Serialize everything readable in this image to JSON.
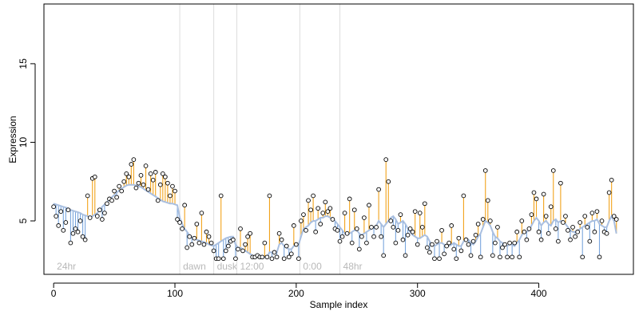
{
  "chart_data": {
    "type": "line",
    "title": "",
    "xlabel": "Sample index",
    "ylabel": "Expression",
    "xlim": [
      -8,
      478
    ],
    "ylim": [
      1.6,
      18.8
    ],
    "x_ticks": [
      0,
      100,
      200,
      300,
      400
    ],
    "y_ticks": [
      5,
      10,
      15
    ],
    "grid": false,
    "legend": "none",
    "colors": {
      "fitted_line": "#a9bfe0",
      "residual_above": "#f2a31b",
      "residual_below": "#7aa6dd",
      "points_fill": "#ffffff",
      "points_stroke": "#000000",
      "phase_lines": "#dddddd",
      "phase_text": "#b8b8b8"
    },
    "phases": [
      {
        "label": "24hr",
        "x": 0
      },
      {
        "label": "dawn",
        "x": 104
      },
      {
        "label": "dusk",
        "x": 132
      },
      {
        "label": "12:00",
        "x": 151
      },
      {
        "label": "0:00",
        "x": 203
      },
      {
        "label": "48hr",
        "x": 236
      }
    ],
    "series": [
      {
        "values": [
          [
            0,
            5.9,
            6.1
          ],
          [
            2,
            5.3,
            6.05
          ],
          [
            4,
            4.7,
            6.0
          ],
          [
            6,
            5.6,
            5.95
          ],
          [
            8,
            4.4,
            5.9
          ],
          [
            10,
            4.9,
            5.85
          ],
          [
            12,
            5.7,
            5.8
          ],
          [
            14,
            3.6,
            5.7
          ],
          [
            16,
            4.2,
            5.65
          ],
          [
            18,
            4.5,
            5.6
          ],
          [
            20,
            4.3,
            5.55
          ],
          [
            22,
            5.0,
            5.5
          ],
          [
            24,
            4.0,
            5.4
          ],
          [
            26,
            3.8,
            5.35
          ],
          [
            28,
            6.6,
            5.3
          ],
          [
            30,
            5.2,
            5.25
          ],
          [
            32,
            7.7,
            5.3
          ],
          [
            34,
            7.8,
            5.4
          ],
          [
            36,
            5.3,
            5.5
          ],
          [
            38,
            5.7,
            5.7
          ],
          [
            40,
            5.1,
            5.9
          ],
          [
            42,
            5.5,
            6.05
          ],
          [
            44,
            6.1,
            6.2
          ],
          [
            46,
            6.4,
            6.35
          ],
          [
            48,
            6.3,
            6.5
          ],
          [
            50,
            6.9,
            6.65
          ],
          [
            52,
            6.5,
            6.8
          ],
          [
            54,
            7.2,
            6.95
          ],
          [
            56,
            6.9,
            7.05
          ],
          [
            58,
            7.5,
            7.15
          ],
          [
            60,
            8.0,
            7.25
          ],
          [
            62,
            7.8,
            7.3
          ],
          [
            64,
            8.6,
            7.3
          ],
          [
            66,
            8.9,
            7.3
          ],
          [
            68,
            7.1,
            7.25
          ],
          [
            70,
            7.4,
            7.2
          ],
          [
            72,
            7.9,
            7.15
          ],
          [
            74,
            7.3,
            7.05
          ],
          [
            76,
            8.5,
            6.95
          ],
          [
            78,
            7.0,
            6.85
          ],
          [
            80,
            8.0,
            6.75
          ],
          [
            82,
            7.6,
            6.65
          ],
          [
            84,
            8.1,
            6.55
          ],
          [
            86,
            6.3,
            6.45
          ],
          [
            88,
            7.3,
            6.35
          ],
          [
            90,
            8.0,
            6.25
          ],
          [
            92,
            7.8,
            6.2
          ],
          [
            94,
            7.4,
            6.15
          ],
          [
            96,
            6.6,
            6.1
          ],
          [
            98,
            7.2,
            6.1
          ],
          [
            100,
            6.9,
            6.05
          ],
          [
            102,
            5.1,
            6.0
          ],
          [
            104,
            4.9,
            5.2
          ],
          [
            106,
            4.5,
            4.8
          ],
          [
            108,
            6.0,
            4.5
          ],
          [
            110,
            3.3,
            4.3
          ],
          [
            112,
            4.0,
            4.1
          ],
          [
            114,
            3.5,
            3.95
          ],
          [
            116,
            3.9,
            3.85
          ],
          [
            118,
            4.8,
            3.8
          ],
          [
            120,
            3.6,
            3.75
          ],
          [
            122,
            5.5,
            3.7
          ],
          [
            124,
            3.5,
            3.65
          ],
          [
            126,
            4.3,
            3.6
          ],
          [
            128,
            4.0,
            3.5
          ],
          [
            130,
            3.6,
            3.45
          ],
          [
            132,
            3.1,
            3.4
          ],
          [
            134,
            2.6,
            3.5
          ],
          [
            136,
            2.6,
            3.6
          ],
          [
            138,
            6.6,
            3.7
          ],
          [
            140,
            2.6,
            3.8
          ],
          [
            142,
            3.1,
            3.9
          ],
          [
            144,
            3.4,
            3.95
          ],
          [
            146,
            3.7,
            4.0
          ],
          [
            148,
            3.8,
            4.0
          ],
          [
            150,
            2.6,
            3.5
          ],
          [
            152,
            3.2,
            3.3
          ],
          [
            154,
            4.5,
            3.3
          ],
          [
            156,
            3.1,
            3.2
          ],
          [
            158,
            3.5,
            3.1
          ],
          [
            160,
            4.0,
            3.0
          ],
          [
            162,
            4.2,
            2.9
          ],
          [
            164,
            2.7,
            2.8
          ],
          [
            166,
            2.7,
            2.75
          ],
          [
            168,
            2.8,
            2.7
          ],
          [
            170,
            2.7,
            2.7
          ],
          [
            172,
            2.7,
            2.7
          ],
          [
            174,
            3.6,
            2.7
          ],
          [
            176,
            2.7,
            2.7
          ],
          [
            178,
            6.6,
            3.0
          ],
          [
            180,
            2.6,
            3.0
          ],
          [
            182,
            3.0,
            3.0
          ],
          [
            184,
            2.7,
            3.0
          ],
          [
            186,
            4.2,
            3.5
          ],
          [
            188,
            3.8,
            3.6
          ],
          [
            190,
            2.6,
            3.4
          ],
          [
            192,
            3.4,
            3.3
          ],
          [
            194,
            2.7,
            3.2
          ],
          [
            196,
            2.9,
            3.2
          ],
          [
            198,
            4.7,
            3.4
          ],
          [
            200,
            3.5,
            3.6
          ],
          [
            202,
            2.6,
            3.5
          ],
          [
            204,
            5.0,
            4.0
          ],
          [
            206,
            5.4,
            4.5
          ],
          [
            208,
            4.4,
            4.6
          ],
          [
            210,
            6.3,
            4.7
          ],
          [
            212,
            5.7,
            4.9
          ],
          [
            214,
            6.6,
            5.0
          ],
          [
            216,
            4.3,
            5.0
          ],
          [
            218,
            5.8,
            5.1
          ],
          [
            220,
            4.8,
            5.2
          ],
          [
            222,
            5.5,
            5.2
          ],
          [
            224,
            6.2,
            5.3
          ],
          [
            226,
            5.6,
            5.3
          ],
          [
            228,
            5.8,
            5.2
          ],
          [
            230,
            5.1,
            5.1
          ],
          [
            232,
            4.5,
            5.0
          ],
          [
            234,
            4.4,
            4.8
          ],
          [
            236,
            3.7,
            4.6
          ],
          [
            238,
            4.0,
            4.4
          ],
          [
            240,
            5.5,
            4.2
          ],
          [
            242,
            4.2,
            4.1
          ],
          [
            244,
            6.4,
            4.2
          ],
          [
            246,
            3.6,
            4.3
          ],
          [
            248,
            5.7,
            4.4
          ],
          [
            250,
            4.5,
            4.4
          ],
          [
            252,
            3.2,
            4.2
          ],
          [
            254,
            4.0,
            4.1
          ],
          [
            256,
            5.2,
            4.2
          ],
          [
            258,
            3.6,
            4.3
          ],
          [
            260,
            6.0,
            4.4
          ],
          [
            262,
            4.6,
            4.5
          ],
          [
            264,
            4.0,
            4.6
          ],
          [
            266,
            4.6,
            4.7
          ],
          [
            268,
            7.0,
            5.0
          ],
          [
            270,
            4.0,
            4.8
          ],
          [
            272,
            2.8,
            4.6
          ],
          [
            274,
            8.9,
            4.8
          ],
          [
            276,
            7.5,
            5.0
          ],
          [
            278,
            5.0,
            5.2
          ],
          [
            280,
            4.6,
            5.3
          ],
          [
            282,
            3.6,
            5.1
          ],
          [
            284,
            4.4,
            4.8
          ],
          [
            286,
            5.4,
            4.9
          ],
          [
            288,
            3.8,
            5.0
          ],
          [
            290,
            2.8,
            4.8
          ],
          [
            292,
            4.1,
            4.5
          ],
          [
            294,
            4.5,
            4.3
          ],
          [
            296,
            4.3,
            4.1
          ],
          [
            298,
            5.6,
            4.0
          ],
          [
            300,
            3.5,
            3.9
          ],
          [
            302,
            5.5,
            3.9
          ],
          [
            304,
            4.6,
            4.0
          ],
          [
            306,
            6.1,
            4.1
          ],
          [
            308,
            3.3,
            4.0
          ],
          [
            310,
            3.0,
            3.7
          ],
          [
            312,
            3.5,
            3.5
          ],
          [
            314,
            2.6,
            3.4
          ],
          [
            316,
            3.7,
            3.5
          ],
          [
            318,
            2.6,
            3.6
          ],
          [
            320,
            4.4,
            3.6
          ],
          [
            322,
            2.9,
            3.5
          ],
          [
            324,
            3.4,
            3.4
          ],
          [
            326,
            3.6,
            3.4
          ],
          [
            328,
            4.7,
            3.5
          ],
          [
            330,
            3.2,
            3.6
          ],
          [
            332,
            2.6,
            3.5
          ],
          [
            334,
            3.9,
            3.4
          ],
          [
            336,
            3.1,
            3.4
          ],
          [
            338,
            6.6,
            3.7
          ],
          [
            340,
            3.8,
            3.9
          ],
          [
            342,
            3.5,
            3.8
          ],
          [
            344,
            2.8,
            3.6
          ],
          [
            346,
            3.7,
            3.5
          ],
          [
            348,
            4.1,
            3.7
          ],
          [
            350,
            4.8,
            4.0
          ],
          [
            352,
            2.7,
            4.2
          ],
          [
            354,
            5.1,
            4.6
          ],
          [
            356,
            8.2,
            5.0
          ],
          [
            358,
            6.3,
            4.9
          ],
          [
            360,
            5.0,
            4.7
          ],
          [
            362,
            2.8,
            4.3
          ],
          [
            364,
            3.6,
            4.0
          ],
          [
            366,
            4.6,
            3.9
          ],
          [
            368,
            2.7,
            3.7
          ],
          [
            370,
            3.3,
            3.6
          ],
          [
            372,
            3.5,
            3.5
          ],
          [
            374,
            2.7,
            3.4
          ],
          [
            376,
            3.6,
            3.5
          ],
          [
            378,
            2.7,
            3.5
          ],
          [
            380,
            3.6,
            3.4
          ],
          [
            382,
            4.3,
            3.6
          ],
          [
            384,
            2.7,
            3.8
          ],
          [
            386,
            5.0,
            4.1
          ],
          [
            388,
            4.3,
            4.3
          ],
          [
            390,
            3.8,
            4.3
          ],
          [
            392,
            4.5,
            4.4
          ],
          [
            394,
            5.4,
            4.7
          ],
          [
            396,
            6.8,
            5.0
          ],
          [
            398,
            6.4,
            5.2
          ],
          [
            400,
            4.3,
            5.0
          ],
          [
            402,
            3.8,
            4.7
          ],
          [
            404,
            6.7,
            4.9
          ],
          [
            406,
            5.3,
            5.0
          ],
          [
            408,
            4.2,
            4.8
          ],
          [
            410,
            5.9,
            4.7
          ],
          [
            412,
            8.2,
            5.0
          ],
          [
            414,
            4.5,
            5.1
          ],
          [
            416,
            3.7,
            4.9
          ],
          [
            418,
            7.4,
            5.0
          ],
          [
            420,
            4.9,
            5.0
          ],
          [
            422,
            5.3,
            4.8
          ],
          [
            424,
            4.4,
            4.6
          ],
          [
            426,
            3.8,
            4.4
          ],
          [
            428,
            4.6,
            4.3
          ],
          [
            430,
            4.0,
            4.3
          ],
          [
            432,
            4.3,
            4.3
          ],
          [
            434,
            4.9,
            4.5
          ],
          [
            436,
            2.7,
            4.6
          ],
          [
            438,
            5.3,
            4.7
          ],
          [
            440,
            4.6,
            4.8
          ],
          [
            442,
            3.7,
            4.9
          ],
          [
            444,
            5.5,
            5.0
          ],
          [
            446,
            4.3,
            5.0
          ],
          [
            448,
            5.6,
            5.1
          ],
          [
            450,
            2.7,
            4.8
          ],
          [
            452,
            5.0,
            4.7
          ],
          [
            454,
            4.3,
            4.6
          ],
          [
            456,
            4.2,
            4.6
          ],
          [
            458,
            6.8,
            5.0
          ],
          [
            460,
            7.6,
            5.3
          ],
          [
            462,
            5.3,
            5.0
          ],
          [
            464,
            5.1,
            4.2
          ]
        ]
      }
    ]
  }
}
